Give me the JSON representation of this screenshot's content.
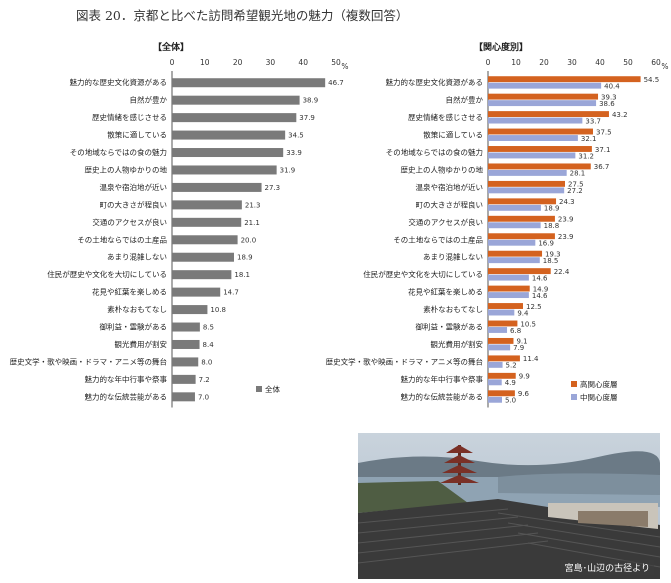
{
  "title": "図表 20．京都と比べた訪問希望観光地の魅力（複数回答）",
  "colors": {
    "overall": "#7a7a7a",
    "high": "#d4621f",
    "mid": "#9aa6d8",
    "axis": "#555"
  },
  "photo_caption": "宮島･山辺の古径より",
  "chart_data": [
    {
      "type": "bar",
      "orientation": "horizontal",
      "title": "【全体】",
      "unit": "%",
      "xlim": [
        0,
        50
      ],
      "ticks": [
        "0",
        "10",
        "20",
        "30",
        "40",
        "50"
      ],
      "legend_position": "bottom-right",
      "categories": [
        "魅力的な歴史文化資源がある",
        "自然が豊か",
        "歴史情緒を感じさせる",
        "散策に適している",
        "その地域ならではの食の魅力",
        "歴史上の人物ゆかりの地",
        "温泉や宿泊地が近い",
        "町の大きさが程良い",
        "交通のアクセスが良い",
        "その土地ならではの土産品",
        "あまり混雑しない",
        "住民が歴史や文化を大切にしている",
        "花見や紅葉を楽しめる",
        "素朴なおもてなし",
        "御利益・霊験がある",
        "観光費用が割安",
        "歴史文学・歌や映画・ドラマ・アニメ等の舞台",
        "魅力的な年中行事や祭事",
        "魅力的な伝統芸能がある"
      ],
      "series": [
        {
          "name": "全体",
          "values": [
            46.7,
            38.9,
            37.9,
            34.5,
            33.9,
            31.9,
            27.3,
            21.3,
            21.1,
            20.0,
            18.9,
            18.1,
            14.7,
            10.8,
            8.5,
            8.4,
            8.0,
            7.2,
            7.0
          ],
          "labels": [
            "46.7",
            "38.9",
            "37.9",
            "34.5",
            "33.9",
            "31.9",
            "27.3",
            "21.3",
            "21.1",
            "20.0",
            "18.9",
            "18.1",
            "14.7",
            "10.8",
            "8.5",
            "8.4",
            "8.0",
            "7.2",
            "7.0"
          ]
        }
      ]
    },
    {
      "type": "bar",
      "orientation": "horizontal",
      "title": "【関心度別】",
      "unit": "%",
      "xlim": [
        0,
        60
      ],
      "ticks": [
        "0",
        "10",
        "20",
        "30",
        "40",
        "50",
        "60"
      ],
      "legend_position": "bottom-right",
      "categories": [
        "魅力的な歴史文化資源がある",
        "自然が豊か",
        "歴史情緒を感じさせる",
        "散策に適している",
        "その地域ならではの食の魅力",
        "歴史上の人物ゆかりの地",
        "温泉や宿泊地が近い",
        "町の大きさが程良い",
        "交通のアクセスが良い",
        "その土地ならではの土産品",
        "あまり混雑しない",
        "住民が歴史や文化を大切にしている",
        "花見や紅葉を楽しめる",
        "素朴なおもてなし",
        "御利益・霊験がある",
        "観光費用が割安",
        "歴史文学・歌や映画・ドラマ・アニメ等の舞台",
        "魅力的な年中行事や祭事",
        "魅力的な伝統芸能がある"
      ],
      "series": [
        {
          "name": "高関心度層",
          "values": [
            54.5,
            39.3,
            43.2,
            37.5,
            37.1,
            36.7,
            27.5,
            24.3,
            23.9,
            23.9,
            19.3,
            22.4,
            14.9,
            12.5,
            10.5,
            9.1,
            11.4,
            9.9,
            9.6
          ],
          "labels": [
            "54.5",
            "39.3",
            "43.2",
            "37.5",
            "37.1",
            "36.7",
            "27.5",
            "24.3",
            "23.9",
            "23.9",
            "19.3",
            "22.4",
            "14.9",
            "12.5",
            "10.5",
            "9.1",
            "11.4",
            "9.9",
            "9.6"
          ]
        },
        {
          "name": "中関心度層",
          "values": [
            40.4,
            38.6,
            33.7,
            32.1,
            31.2,
            28.1,
            27.2,
            18.9,
            18.8,
            16.9,
            18.5,
            14.6,
            14.6,
            9.4,
            6.8,
            7.9,
            5.2,
            4.9,
            5.0
          ],
          "labels": [
            "40.4",
            "38.6",
            "33.7",
            "32.1",
            "31.2",
            "28.1",
            "27.2",
            "18.9",
            "18.8",
            "16.9",
            "18.5",
            "14.6",
            "14.6",
            "9.4",
            "6.8",
            "7.9",
            "5.2",
            "4.9",
            "5.0"
          ]
        }
      ]
    }
  ]
}
